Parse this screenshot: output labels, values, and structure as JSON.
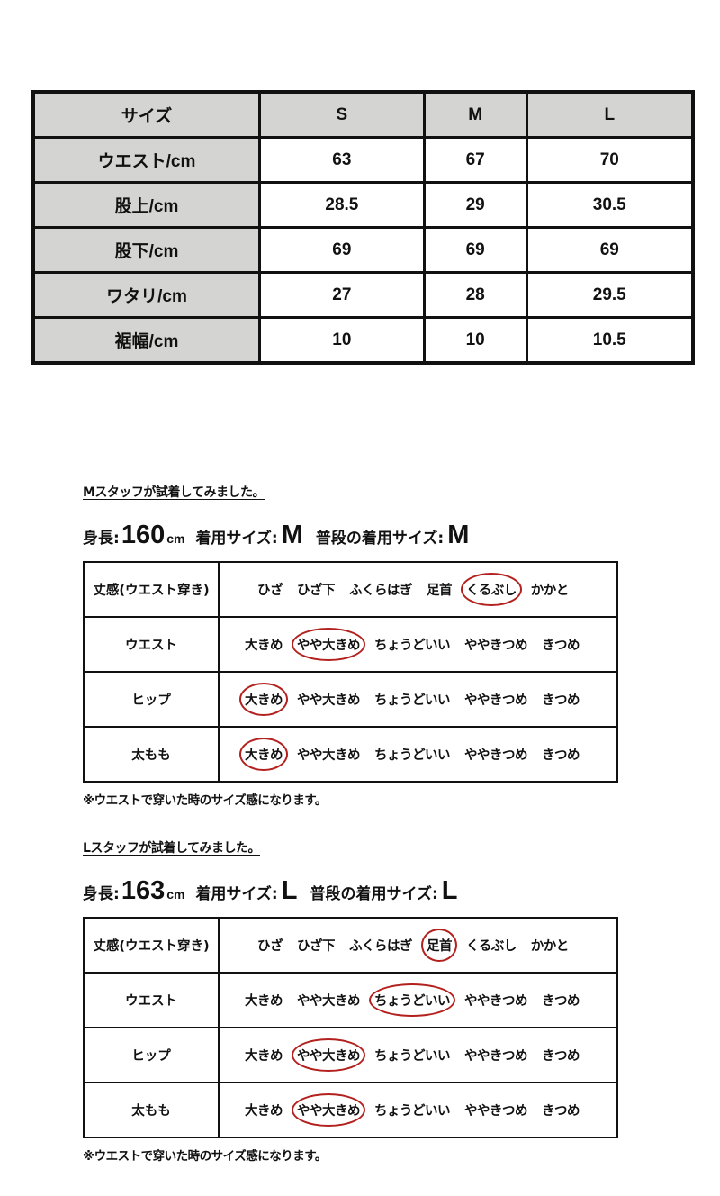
{
  "size_chart": {
    "header": [
      "サイズ",
      "S",
      "M",
      "L"
    ],
    "rows": [
      [
        "ウエスト/cm",
        "63",
        "67",
        "70"
      ],
      [
        "股上/cm",
        "28.5",
        "29",
        "30.5"
      ],
      [
        "股下/cm",
        "69",
        "69",
        "69"
      ],
      [
        "ワタリ/cm",
        "27",
        "28",
        "29.5"
      ],
      [
        "裾幅/cm",
        "10",
        "10",
        "10.5"
      ]
    ]
  },
  "highlight_color": "#b3211e",
  "length_options": [
    "ひざ",
    "ひざ下",
    "ふくらはぎ",
    "足首",
    "くるぶし",
    "かかと"
  ],
  "fit_options": [
    "大きめ",
    "やや大きめ",
    "ちょうどいい",
    "ややきつめ",
    "きつめ"
  ],
  "staff": [
    {
      "title": "Mスタッフが試着してみました。",
      "height_label": "身長:",
      "height": "160",
      "height_unit": "cm",
      "worn_label": "着用サイズ:",
      "worn": "M",
      "usual_label": "普段の着用サイズ:",
      "usual": "M",
      "rows": [
        {
          "label": "丈感(ウエスト穿き)",
          "type": "length",
          "selected": 4
        },
        {
          "label": "ウエスト",
          "type": "fit",
          "selected": 1
        },
        {
          "label": "ヒップ",
          "type": "fit",
          "selected": 0
        },
        {
          "label": "太もも",
          "type": "fit",
          "selected": 0
        }
      ],
      "note": "※ウエストで穿いた時のサイズ感になります。"
    },
    {
      "title": "Lスタッフが試着してみました。",
      "height_label": "身長:",
      "height": "163",
      "height_unit": "cm",
      "worn_label": "着用サイズ:",
      "worn": "L",
      "usual_label": "普段の着用サイズ:",
      "usual": "L",
      "rows": [
        {
          "label": "丈感(ウエスト穿き)",
          "type": "length",
          "selected": 3
        },
        {
          "label": "ウエスト",
          "type": "fit",
          "selected": 2
        },
        {
          "label": "ヒップ",
          "type": "fit",
          "selected": 1
        },
        {
          "label": "太もも",
          "type": "fit",
          "selected": 1
        }
      ],
      "note": "※ウエストで穿いた時のサイズ感になります。"
    }
  ]
}
